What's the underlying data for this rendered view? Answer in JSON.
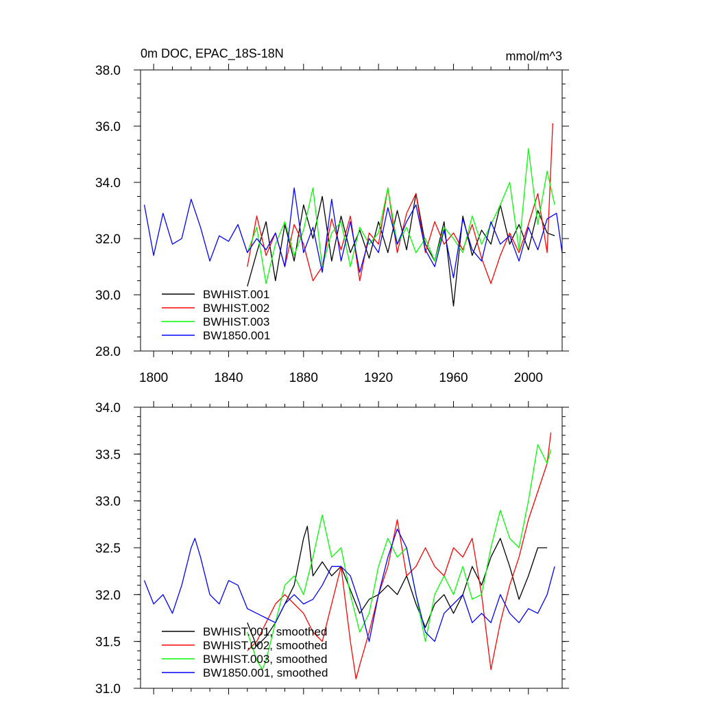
{
  "colors": {
    "BWHIST.001": "#000000",
    "BWHIST.002": "#ff0000",
    "BWHIST.003": "#00ff00",
    "BW1850.001": "#0000ff"
  },
  "chart_data": [
    {
      "type": "line",
      "title": "0m DOC, EPAC_18S-18N",
      "units": "mmol/m^3",
      "xlabel": "",
      "ylabel": "",
      "xlim": [
        1793,
        2018
      ],
      "ylim": [
        28.0,
        38.0
      ],
      "xticks": [
        1800,
        1840,
        1880,
        1920,
        1960,
        2000
      ],
      "xtick_labels": [
        "1800",
        "1840",
        "1880",
        "1920",
        "1960",
        "2000"
      ],
      "yticks": [
        28,
        30,
        32,
        34,
        36,
        38
      ],
      "ytick_labels": [
        "28.0",
        "30.0",
        "32.0",
        "34.0",
        "36.0",
        "38.0"
      ],
      "legend_position": "bottom-left",
      "series": [
        {
          "name": "BWHIST.001",
          "x": [
            1850,
            1855,
            1860,
            1865,
            1870,
            1875,
            1880,
            1885,
            1890,
            1895,
            1900,
            1905,
            1910,
            1915,
            1920,
            1925,
            1930,
            1935,
            1940,
            1945,
            1950,
            1955,
            1960,
            1965,
            1970,
            1975,
            1980,
            1985,
            1990,
            1995,
            2000,
            2005,
            2010,
            2014
          ],
          "y": [
            30.3,
            31.5,
            32.6,
            30.5,
            32.5,
            31.2,
            33.2,
            32.0,
            33.5,
            31.2,
            32.8,
            31.5,
            32.3,
            31.3,
            32.6,
            31.5,
            33.0,
            31.6,
            33.6,
            31.8,
            31.2,
            32.6,
            29.6,
            32.8,
            31.4,
            32.3,
            31.8,
            33.2,
            31.8,
            32.5,
            31.6,
            33.0,
            32.2,
            32.1
          ]
        },
        {
          "name": "BWHIST.002",
          "x": [
            1850,
            1855,
            1860,
            1865,
            1870,
            1875,
            1880,
            1885,
            1890,
            1895,
            1900,
            1905,
            1910,
            1915,
            1920,
            1925,
            1930,
            1935,
            1940,
            1945,
            1950,
            1955,
            1960,
            1965,
            1970,
            1975,
            1980,
            1985,
            1990,
            1995,
            2000,
            2005,
            2010,
            2013
          ],
          "y": [
            31.0,
            32.8,
            31.4,
            32.2,
            31.0,
            32.5,
            31.8,
            30.5,
            31.0,
            32.7,
            31.6,
            32.8,
            30.5,
            32.2,
            31.8,
            33.8,
            31.5,
            32.9,
            33.6,
            31.5,
            32.6,
            31.8,
            32.2,
            31.6,
            32.5,
            31.3,
            30.4,
            31.4,
            32.2,
            31.5,
            32.5,
            33.6,
            31.5,
            36.1
          ]
        },
        {
          "name": "BWHIST.003",
          "x": [
            1850,
            1855,
            1860,
            1865,
            1870,
            1875,
            1880,
            1885,
            1890,
            1895,
            1900,
            1905,
            1910,
            1915,
            1920,
            1925,
            1930,
            1935,
            1940,
            1945,
            1950,
            1955,
            1960,
            1965,
            1970,
            1975,
            1980,
            1985,
            1990,
            1995,
            2000,
            2005,
            2010,
            2014
          ],
          "y": [
            31.5,
            32.4,
            30.4,
            31.8,
            32.6,
            31.4,
            32.3,
            33.8,
            31.0,
            32.2,
            32.6,
            31.0,
            32.4,
            31.8,
            32.2,
            33.8,
            31.8,
            32.4,
            31.5,
            32.0,
            31.2,
            32.4,
            32.0,
            31.5,
            32.8,
            31.8,
            32.5,
            33.2,
            34.0,
            31.6,
            35.2,
            32.5,
            34.4,
            33.2
          ]
        },
        {
          "name": "BW1850.001",
          "x": [
            1795,
            1800,
            1805,
            1810,
            1815,
            1820,
            1825,
            1830,
            1835,
            1840,
            1845,
            1850,
            1855,
            1860,
            1865,
            1870,
            1875,
            1880,
            1885,
            1890,
            1895,
            1900,
            1905,
            1910,
            1915,
            1920,
            1925,
            1930,
            1935,
            1940,
            1945,
            1950,
            1955,
            1960,
            1965,
            1970,
            1975,
            1980,
            1985,
            1990,
            1995,
            2000,
            2005,
            2010,
            2015,
            2018
          ],
          "y": [
            33.2,
            31.4,
            32.9,
            31.8,
            32.0,
            33.4,
            32.4,
            31.2,
            32.1,
            31.9,
            32.5,
            31.5,
            32.0,
            31.6,
            32.2,
            31.0,
            33.8,
            31.5,
            32.4,
            30.8,
            33.4,
            31.2,
            32.6,
            30.8,
            32.0,
            31.5,
            33.1,
            31.8,
            32.6,
            33.2,
            31.6,
            31.0,
            32.3,
            30.6,
            32.7,
            31.6,
            31.2,
            32.6,
            31.8,
            32.1,
            31.2,
            32.4,
            31.6,
            32.7,
            32.9,
            31.5
          ]
        }
      ]
    },
    {
      "type": "line",
      "title": "",
      "xlabel": "",
      "ylabel": "",
      "xlim": [
        1793,
        2018
      ],
      "ylim": [
        31.0,
        34.0
      ],
      "xticks": [
        1800,
        1840,
        1880,
        1920,
        1960,
        2000
      ],
      "yticks": [
        31.0,
        31.5,
        32.0,
        32.5,
        33.0,
        33.5,
        34.0
      ],
      "ytick_labels": [
        "31.0",
        "31.5",
        "32.0",
        "32.5",
        "33.0",
        "33.5",
        "34.0"
      ],
      "legend_position": "bottom-left",
      "series": [
        {
          "name": "BWHIST.001, smoothed",
          "x": [
            1850,
            1855,
            1860,
            1865,
            1870,
            1875,
            1880,
            1882,
            1885,
            1890,
            1895,
            1900,
            1905,
            1910,
            1915,
            1920,
            1925,
            1930,
            1935,
            1940,
            1945,
            1950,
            1955,
            1960,
            1965,
            1970,
            1975,
            1980,
            1985,
            1990,
            1995,
            2000,
            2005,
            2010
          ],
          "y": [
            31.7,
            31.45,
            31.55,
            31.7,
            31.9,
            32.1,
            32.6,
            32.73,
            32.2,
            32.35,
            32.2,
            32.3,
            32.05,
            31.8,
            31.95,
            32.0,
            32.1,
            32.0,
            32.2,
            31.9,
            31.65,
            31.9,
            32.0,
            31.8,
            32.0,
            32.3,
            32.1,
            32.4,
            32.6,
            32.3,
            31.95,
            32.2,
            32.5,
            32.5
          ]
        },
        {
          "name": "BWHIST.002, smoothed",
          "x": [
            1850,
            1855,
            1860,
            1865,
            1870,
            1875,
            1880,
            1885,
            1890,
            1895,
            1900,
            1905,
            1908,
            1910,
            1915,
            1920,
            1925,
            1930,
            1935,
            1940,
            1945,
            1950,
            1955,
            1960,
            1965,
            1970,
            1975,
            1980,
            1985,
            1990,
            1995,
            2000,
            2005,
            2010,
            2012
          ],
          "y": [
            31.4,
            31.5,
            31.7,
            31.9,
            32.0,
            31.9,
            31.8,
            31.6,
            31.5,
            31.9,
            32.3,
            31.5,
            31.1,
            31.25,
            31.6,
            32.0,
            32.3,
            32.8,
            32.2,
            32.3,
            32.5,
            32.3,
            32.2,
            32.5,
            32.4,
            32.6,
            32.0,
            31.2,
            31.7,
            32.1,
            32.4,
            32.8,
            33.1,
            33.4,
            33.73
          ]
        },
        {
          "name": "BWHIST.003, smoothed",
          "x": [
            1850,
            1855,
            1858,
            1860,
            1865,
            1870,
            1875,
            1880,
            1885,
            1890,
            1895,
            1900,
            1905,
            1910,
            1915,
            1920,
            1925,
            1930,
            1935,
            1940,
            1945,
            1950,
            1955,
            1960,
            1965,
            1970,
            1975,
            1980,
            1985,
            1990,
            1995,
            2000,
            2005,
            2010,
            2012
          ],
          "y": [
            31.6,
            31.3,
            31.2,
            31.3,
            31.7,
            32.1,
            32.2,
            32.0,
            32.4,
            32.85,
            32.4,
            32.5,
            32.0,
            31.6,
            31.8,
            32.3,
            32.6,
            32.4,
            32.5,
            32.0,
            31.5,
            32.0,
            32.2,
            32.0,
            32.3,
            31.95,
            32.0,
            32.5,
            32.9,
            32.6,
            32.5,
            33.0,
            33.6,
            33.4,
            33.55
          ]
        },
        {
          "name": "BW1850.001, smoothed",
          "x": [
            1795,
            1800,
            1805,
            1810,
            1815,
            1820,
            1822,
            1825,
            1830,
            1835,
            1840,
            1845,
            1850,
            1855,
            1860,
            1865,
            1870,
            1875,
            1880,
            1885,
            1890,
            1895,
            1900,
            1905,
            1910,
            1915,
            1920,
            1925,
            1930,
            1935,
            1940,
            1945,
            1950,
            1955,
            1960,
            1965,
            1970,
            1975,
            1980,
            1985,
            1990,
            1995,
            2000,
            2005,
            2010,
            2014
          ],
          "y": [
            32.15,
            31.9,
            32.0,
            31.8,
            32.1,
            32.5,
            32.6,
            32.4,
            32.0,
            31.9,
            32.15,
            32.1,
            31.85,
            31.8,
            31.75,
            31.7,
            31.9,
            32.0,
            31.9,
            31.95,
            32.1,
            32.3,
            32.3,
            32.2,
            31.9,
            31.5,
            32.0,
            32.4,
            32.7,
            32.5,
            32.0,
            31.6,
            31.5,
            31.8,
            31.9,
            32.0,
            31.7,
            31.8,
            31.7,
            32.0,
            31.8,
            31.7,
            31.85,
            31.8,
            32.0,
            32.3
          ]
        }
      ]
    }
  ]
}
